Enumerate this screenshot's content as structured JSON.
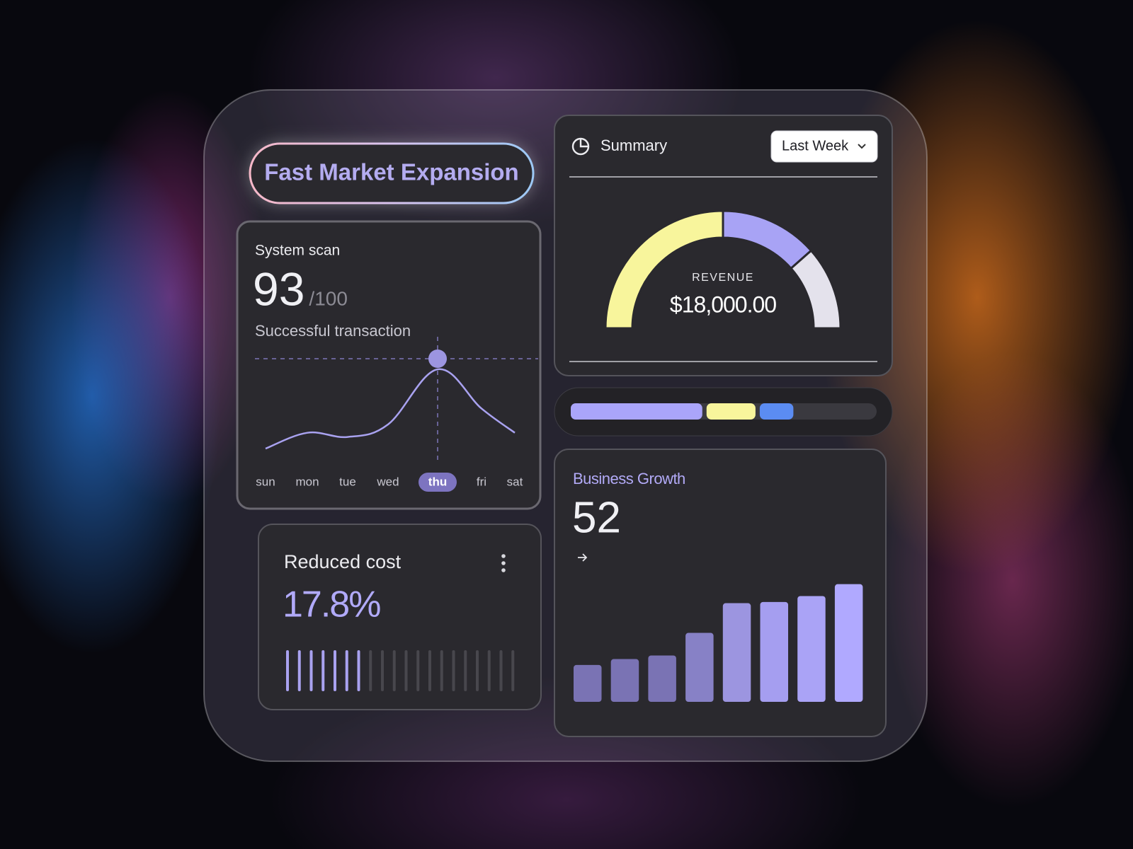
{
  "header": {
    "title": "Fast Market Expansion"
  },
  "system_scan": {
    "title": "System scan",
    "score": 93,
    "score_max": "/100",
    "subtitle": "Successful transaction",
    "chart_data": {
      "type": "line",
      "categories": [
        "sun",
        "mon",
        "tue",
        "wed",
        "thu",
        "fri",
        "sat"
      ],
      "values": [
        5,
        24,
        19,
        34,
        100,
        53,
        24
      ],
      "ylim": [
        0,
        100
      ],
      "color": "#a9a2f0",
      "selected": 4
    }
  },
  "summary": {
    "title": "Summary",
    "period": "Last Week",
    "chart_data": {
      "type": "gauge",
      "label": "REVENUE",
      "value_text": "$18,000.00",
      "values": [
        50,
        27,
        23
      ],
      "colors": [
        "#f8f59c",
        "#a8a3f5",
        "#e4e2ec"
      ]
    }
  },
  "progress": {
    "chart_data": {
      "type": "segmented-bar",
      "values": [
        43,
        16,
        11
      ],
      "xlim": [
        0,
        100
      ],
      "colors": [
        "#aaa5fa",
        "#f8f59c",
        "#5b8cf2"
      ]
    }
  },
  "reduced_cost": {
    "title": "Reduced cost",
    "value": "17.8%",
    "chart_data": {
      "type": "tick-meter",
      "count": 20,
      "active": 7,
      "colors": [
        "#a9a2f0",
        "#48474d"
      ]
    }
  },
  "business_growth": {
    "title": "Business Growth",
    "value": 52,
    "chart_data": {
      "type": "bar",
      "values": [
        31,
        36,
        39,
        58,
        83,
        84,
        89,
        99
      ],
      "ylim": [
        0,
        100
      ],
      "colors": [
        "#7a73b4",
        "#7a73b4",
        "#7a73b4",
        "#8781c6",
        "#9c95e0",
        "#a59ef0",
        "#aaa3f6",
        "#b0a9ff"
      ]
    }
  }
}
